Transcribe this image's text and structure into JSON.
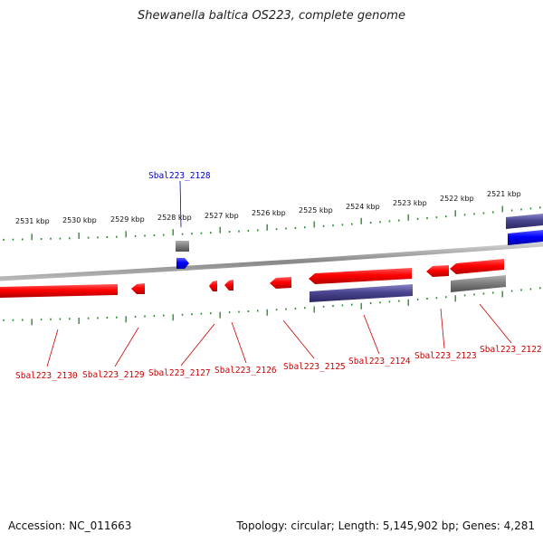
{
  "title": "Shewanella baltica OS223, complete genome",
  "footer": {
    "accession": "Accession: NC_011663",
    "summary": "Topology: circular; Length: 5,145,902 bp; Genes: 4,281"
  },
  "colors": {
    "forward_gene": "#ff0000",
    "reverse_gene": "#ff0000",
    "cds_forward": "#0000ff",
    "feature_gray": "#808080",
    "feature_purple": "#4a4590",
    "backbone": "#999999",
    "tick": "#2e8b2e",
    "label_forward": "#0000cc",
    "label_reverse": "#cc0000"
  },
  "scale": {
    "unit": "kbp",
    "ticks": [
      {
        "label": "2531 kbp",
        "kbp": 2531
      },
      {
        "label": "2530 kbp",
        "kbp": 2530
      },
      {
        "label": "2529 kbp",
        "kbp": 2529
      },
      {
        "label": "2528 kbp",
        "kbp": 2528
      },
      {
        "label": "2527 kbp",
        "kbp": 2527
      },
      {
        "label": "2526 kbp",
        "kbp": 2526
      },
      {
        "label": "2525 kbp",
        "kbp": 2525
      },
      {
        "label": "2524 kbp",
        "kbp": 2524
      },
      {
        "label": "2523 kbp",
        "kbp": 2523
      },
      {
        "label": "2522 kbp",
        "kbp": 2522
      },
      {
        "label": "2521 kbp",
        "kbp": 2521
      }
    ]
  },
  "genes": [
    {
      "label": "Sbal223_2128",
      "strand": "forward"
    },
    {
      "label": "Sbal223_2130",
      "strand": "reverse"
    },
    {
      "label": "Sbal223_2129",
      "strand": "reverse"
    },
    {
      "label": "Sbal223_2127",
      "strand": "reverse"
    },
    {
      "label": "Sbal223_2126",
      "strand": "reverse"
    },
    {
      "label": "Sbal223_2125",
      "strand": "reverse"
    },
    {
      "label": "Sbal223_2124",
      "strand": "reverse"
    },
    {
      "label": "Sbal223_2123",
      "strand": "reverse"
    },
    {
      "label": "Sbal223_2122",
      "strand": "reverse"
    }
  ]
}
